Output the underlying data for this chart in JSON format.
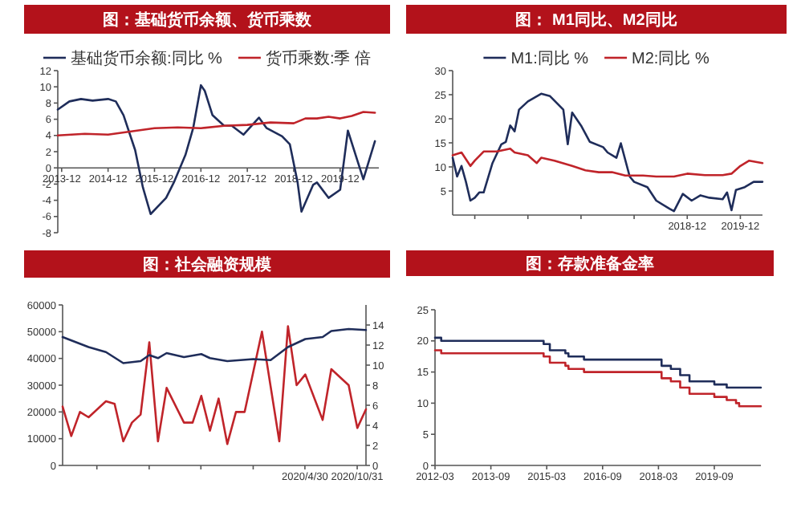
{
  "chart_data": [
    {
      "type": "line",
      "title": "图：基础货币余额、货币乘数",
      "legend": "top",
      "xlim": [
        "2013-11",
        "2020-10"
      ],
      "ylim": [
        -8,
        12
      ],
      "yticks": [
        -8,
        -6,
        -4,
        -2,
        0,
        2,
        4,
        6,
        8,
        10,
        12
      ],
      "xticks": [
        {
          "value": "2013-12",
          "label": "2013-12"
        },
        {
          "value": "2014-12",
          "label": "2014-12"
        },
        {
          "value": "2015-12",
          "label": "2015-12"
        },
        {
          "value": "2016-12",
          "label": "2016-12"
        },
        {
          "value": "2017-12",
          "label": "2017-12"
        },
        {
          "value": "2018-12",
          "label": "2018-12"
        },
        {
          "value": "2019-12",
          "label": "2019-12"
        }
      ],
      "series": [
        {
          "name": "基础货币余额:同比 %",
          "color": "#1f2d5a",
          "x": [
            "2013-11",
            "2014-02",
            "2014-05",
            "2014-08",
            "2014-12",
            "2015-02",
            "2015-04",
            "2015-07",
            "2015-09",
            "2015-11",
            "2016-03",
            "2016-05",
            "2016-08",
            "2016-10",
            "2016-12",
            "2017-01",
            "2017-03",
            "2017-06",
            "2017-08",
            "2017-11",
            "2018-03",
            "2018-05",
            "2018-09",
            "2018-11",
            "2019-01",
            "2019-02",
            "2019-05",
            "2019-06",
            "2019-09",
            "2019-12",
            "2020-01",
            "2020-02",
            "2020-04",
            "2020-06",
            "2020-09"
          ],
          "values": [
            7.2,
            8.2,
            8.5,
            8.3,
            8.5,
            8.2,
            6.5,
            2.2,
            -2.4,
            -5.7,
            -3.7,
            -1.8,
            1.6,
            4.9,
            10.2,
            9.5,
            6.5,
            5.2,
            5.2,
            4.1,
            6.2,
            4.9,
            3.9,
            2.9,
            -1.8,
            -5.4,
            -2.1,
            -1.8,
            -3.7,
            -2.7,
            0.9,
            4.6,
            1.6,
            -1.4,
            3.3
          ]
        },
        {
          "name": "货币乘数:季 倍",
          "color": "#c0242a",
          "x": [
            "2013-11",
            "2014-06",
            "2014-12",
            "2015-06",
            "2015-12",
            "2016-06",
            "2016-12",
            "2017-06",
            "2017-12",
            "2018-06",
            "2018-12",
            "2019-03",
            "2019-06",
            "2019-09",
            "2019-12",
            "2020-03",
            "2020-06",
            "2020-09"
          ],
          "values": [
            4.0,
            4.2,
            4.1,
            4.5,
            4.9,
            5.0,
            4.9,
            5.2,
            5.3,
            5.6,
            5.5,
            6.1,
            6.1,
            6.3,
            6.1,
            6.4,
            6.9,
            6.8
          ]
        }
      ]
    },
    {
      "type": "line",
      "title": "图： M1同比、M2同比",
      "legend": "top",
      "xlim": [
        "2014-07",
        "2020-05"
      ],
      "ylim": [
        0,
        30
      ],
      "yticks": [
        5,
        10,
        15,
        20,
        25,
        30
      ],
      "xticks": [
        {
          "value": "2014-12",
          "label": null
        },
        {
          "value": "2015-12",
          "label": null
        },
        {
          "value": "2016-12",
          "label": null
        },
        {
          "value": "2017-12",
          "label": null
        },
        {
          "value": "2018-12",
          "label": "2018-12"
        },
        {
          "value": "2019-12",
          "label": "2019-12"
        }
      ],
      "series": [
        {
          "name": "M1:同比 %",
          "color": "#1f2d5a",
          "x": [
            "2014-07",
            "2014-08",
            "2014-09",
            "2014-10",
            "2014-11",
            "2014-12",
            "2015-01",
            "2015-02",
            "2015-04",
            "2015-06",
            "2015-07",
            "2015-08",
            "2015-09",
            "2015-10",
            "2015-12",
            "2016-03",
            "2016-05",
            "2016-08",
            "2016-09",
            "2016-10",
            "2016-12",
            "2017-02",
            "2017-05",
            "2017-06",
            "2017-08",
            "2017-09",
            "2017-11",
            "2017-12",
            "2018-03",
            "2018-05",
            "2018-08",
            "2018-09",
            "2018-11",
            "2019-01",
            "2019-03",
            "2019-05",
            "2019-08",
            "2019-09",
            "2019-10",
            "2019-11",
            "2020-01",
            "2020-03",
            "2020-05"
          ],
          "values": [
            11.9,
            8,
            10.2,
            6.9,
            3,
            3.6,
            4.7,
            4.7,
            10.8,
            14.7,
            15.2,
            18.6,
            17.4,
            21.9,
            23.6,
            25.2,
            24.7,
            21.9,
            14.7,
            21.3,
            18.6,
            15.2,
            14.1,
            13,
            11.9,
            14.9,
            8,
            6.9,
            5.8,
            3,
            1.3,
            0.8,
            4.4,
            3,
            4.1,
            3.6,
            3.3,
            4.7,
            1,
            5.2,
            5.8,
            6.9,
            6.9
          ]
        },
        {
          "name": "M2:同比 %",
          "color": "#c0242a",
          "x": [
            "2014-07",
            "2014-09",
            "2014-11",
            "2014-12",
            "2015-02",
            "2015-05",
            "2015-08",
            "2015-09",
            "2015-12",
            "2016-02",
            "2016-03",
            "2016-06",
            "2016-10",
            "2017-01",
            "2017-04",
            "2017-07",
            "2017-10",
            "2018-02",
            "2018-05",
            "2018-09",
            "2018-12",
            "2019-04",
            "2019-08",
            "2019-10",
            "2019-12",
            "2020-02",
            "2020-05"
          ],
          "values": [
            12.4,
            13,
            10.2,
            11.3,
            13.2,
            13.2,
            13.8,
            13,
            12.4,
            10.8,
            11.9,
            11.3,
            10.2,
            9.3,
            8.9,
            8.9,
            8.2,
            8.2,
            8,
            8,
            8.6,
            8.3,
            8.3,
            8.6,
            10.2,
            11.3,
            10.8
          ]
        }
      ]
    },
    {
      "type": "line",
      "title": "图：社会融资规模",
      "xlim": [
        "2018-01",
        "2020-12"
      ],
      "ylim": [
        0,
        60000
      ],
      "yticks": [
        0,
        10000,
        20000,
        30000,
        40000,
        50000,
        60000
      ],
      "y2lim": [
        0,
        16
      ],
      "y2ticks": [
        0,
        2,
        4,
        6,
        8,
        10,
        12,
        14
      ],
      "xticks": [
        {
          "value": "2018-04-30",
          "label": null
        },
        {
          "value": "2018-10-31",
          "label": null
        },
        {
          "value": "2019-04-30",
          "label": null
        },
        {
          "value": "2019-10-31",
          "label": null
        },
        {
          "value": "2020-04-30",
          "label": "2020/4/30"
        },
        {
          "value": "2020-10-31",
          "label": "2020/10/31"
        }
      ],
      "series": [
        {
          "color": "#c0242a",
          "x": [
            "2018-01",
            "2018-02",
            "2018-03",
            "2018-04",
            "2018-06",
            "2018-07",
            "2018-08",
            "2018-09",
            "2018-10",
            "2018-11",
            "2018-12",
            "2019-01",
            "2019-03",
            "2019-04",
            "2019-05",
            "2019-06",
            "2019-07",
            "2019-08",
            "2019-09",
            "2019-10",
            "2019-12",
            "2020-02",
            "2020-03",
            "2020-04",
            "2020-05",
            "2020-07",
            "2020-08",
            "2020-10",
            "2020-11",
            "2020-12"
          ],
          "values": [
            22000,
            11000,
            20000,
            18000,
            24000,
            23000,
            9000,
            16000,
            19000,
            46000,
            9000,
            29000,
            16000,
            16000,
            26000,
            13000,
            25000,
            8000,
            20000,
            20000,
            50000,
            9000,
            52000,
            30000,
            34000,
            17000,
            36000,
            30000,
            14000,
            21000
          ]
        },
        {
          "color": "#1f2d5a",
          "axis": "y2",
          "x": [
            "2018-01",
            "2018-04",
            "2018-06",
            "2018-08",
            "2018-10",
            "2018-11",
            "2018-12",
            "2019-01",
            "2019-03",
            "2019-05",
            "2019-06",
            "2019-08",
            "2019-11",
            "2020-01",
            "2020-03",
            "2020-05",
            "2020-07",
            "2020-08",
            "2020-10",
            "2020-12"
          ],
          "values": [
            12.8,
            11.8,
            11.3,
            10.2,
            10.4,
            11.0,
            10.7,
            11.2,
            10.8,
            11.1,
            10.7,
            10.4,
            10.6,
            10.5,
            11.8,
            12.6,
            12.8,
            13.4,
            13.6,
            13.5
          ]
        }
      ]
    },
    {
      "type": "step",
      "title": "图：存款准备金率",
      "xlim": [
        "2012-03",
        "2020-12"
      ],
      "ylim": [
        0,
        25
      ],
      "yticks": [
        0,
        5,
        10,
        15,
        20,
        25
      ],
      "xticks": [
        "2012-03",
        "2013-09",
        "2015-03",
        "2016-09",
        "2018-03",
        "2019-09"
      ],
      "series": [
        {
          "color": "#1f2d5a",
          "x": [
            "2012-03",
            "2012-05",
            "2015-02",
            "2015-04",
            "2015-09",
            "2015-10",
            "2016-03",
            "2018-04",
            "2018-07",
            "2018-10",
            "2019-01",
            "2019-09",
            "2020-01",
            "2020-12"
          ],
          "values": [
            20.5,
            20,
            19.5,
            18.5,
            18,
            17.5,
            17,
            16,
            15.5,
            14.5,
            13.5,
            13,
            12.5,
            12.5
          ]
        },
        {
          "color": "#c0242a",
          "x": [
            "2012-03",
            "2012-05",
            "2015-02",
            "2015-04",
            "2015-09",
            "2015-10",
            "2016-03",
            "2018-04",
            "2018-07",
            "2018-10",
            "2019-01",
            "2019-09",
            "2020-01",
            "2020-04",
            "2020-05",
            "2020-12"
          ],
          "values": [
            18.5,
            18,
            17.5,
            16.5,
            16,
            15.5,
            15,
            14,
            13.5,
            12.5,
            11.5,
            11,
            10.5,
            10,
            9.5,
            9.5
          ]
        }
      ]
    }
  ]
}
